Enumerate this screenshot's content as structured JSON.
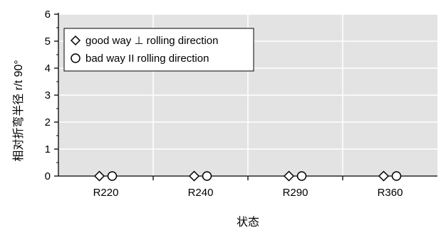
{
  "chart_data": {
    "type": "scatter",
    "categories": [
      "R220",
      "R240",
      "R290",
      "R360"
    ],
    "xlabel": "状态",
    "ylabel": "相对折弯半径 r/t 90°",
    "ylim": [
      0,
      6
    ],
    "yticks": [
      0,
      1,
      2,
      3,
      4,
      5,
      6
    ],
    "grid": true,
    "legend_position": "top-left",
    "background_color": "#e3e3e3",
    "grid_color": "#ffffff",
    "series": [
      {
        "name": "good way ⊥ rolling direction",
        "marker": "diamond",
        "values": [
          0,
          0,
          0,
          0
        ]
      },
      {
        "name": "bad way II rolling direction",
        "marker": "circle",
        "values": [
          0,
          0,
          0,
          0
        ]
      }
    ]
  }
}
